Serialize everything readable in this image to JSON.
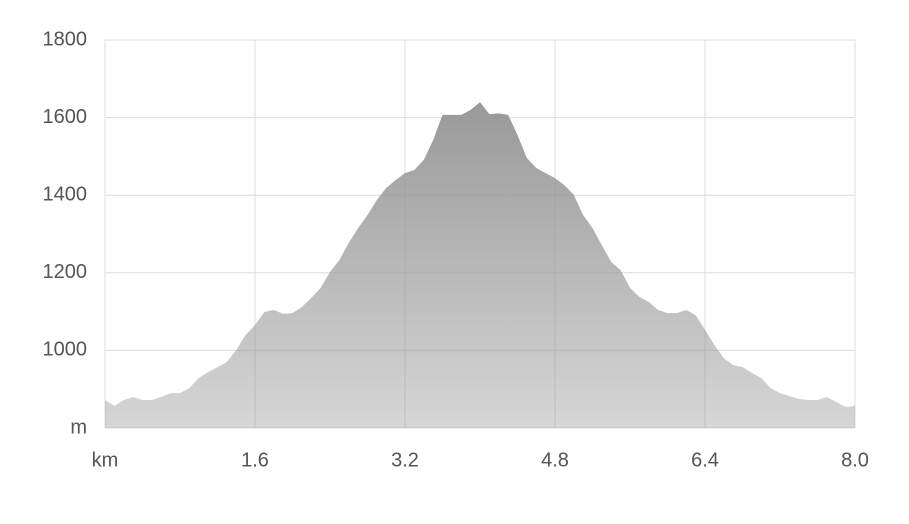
{
  "chart_data": {
    "type": "area",
    "x": [
      0,
      0.1,
      0.2,
      0.3,
      0.4,
      0.5,
      0.6,
      0.7,
      0.8,
      0.9,
      1.0,
      1.1,
      1.2,
      1.3,
      1.4,
      1.5,
      1.6,
      1.7,
      1.8,
      1.9,
      2.0,
      2.1,
      2.2,
      2.3,
      2.4,
      2.5,
      2.6,
      2.7,
      2.8,
      2.9,
      3.0,
      3.1,
      3.2,
      3.3,
      3.4,
      3.5,
      3.6,
      3.7,
      3.8,
      3.9,
      4.0,
      4.1,
      4.2,
      4.3,
      4.4,
      4.5,
      4.6,
      4.7,
      4.8,
      4.9,
      5.0,
      5.1,
      5.2,
      5.3,
      5.4,
      5.5,
      5.6,
      5.7,
      5.8,
      5.9,
      6.0,
      6.1,
      6.2,
      6.3,
      6.4,
      6.5,
      6.6,
      6.7,
      6.8,
      6.9,
      7.0,
      7.1,
      7.2,
      7.3,
      7.4,
      7.5,
      7.6,
      7.7,
      7.8,
      7.9,
      8.0
    ],
    "values": [
      872,
      857,
      872,
      880,
      872,
      872,
      880,
      890,
      890,
      903,
      929,
      944,
      957,
      970,
      1001,
      1040,
      1065,
      1099,
      1104,
      1094,
      1096,
      1112,
      1135,
      1161,
      1202,
      1233,
      1277,
      1315,
      1349,
      1388,
      1419,
      1439,
      1457,
      1465,
      1491,
      1542,
      1607,
      1607,
      1607,
      1620,
      1640,
      1609,
      1611,
      1607,
      1555,
      1496,
      1470,
      1457,
      1444,
      1426,
      1401,
      1349,
      1315,
      1271,
      1228,
      1207,
      1161,
      1138,
      1125,
      1104,
      1096,
      1096,
      1104,
      1091,
      1053,
      1014,
      980,
      962,
      957,
      942,
      929,
      903,
      890,
      882,
      875,
      872,
      872,
      880,
      867,
      854,
      857
    ],
    "color": "#999999",
    "xlim": [
      0,
      8
    ],
    "ylim": [
      800,
      1800
    ],
    "xticks": [
      {
        "value": 0,
        "label": "km"
      },
      1.6,
      3.2,
      4.8,
      6.4,
      {
        "value": 8,
        "label": "8.0"
      }
    ],
    "yticks": [
      {
        "value": 800,
        "label": "m"
      },
      1000,
      1200,
      1400,
      1600,
      1800
    ],
    "grid": true
  }
}
